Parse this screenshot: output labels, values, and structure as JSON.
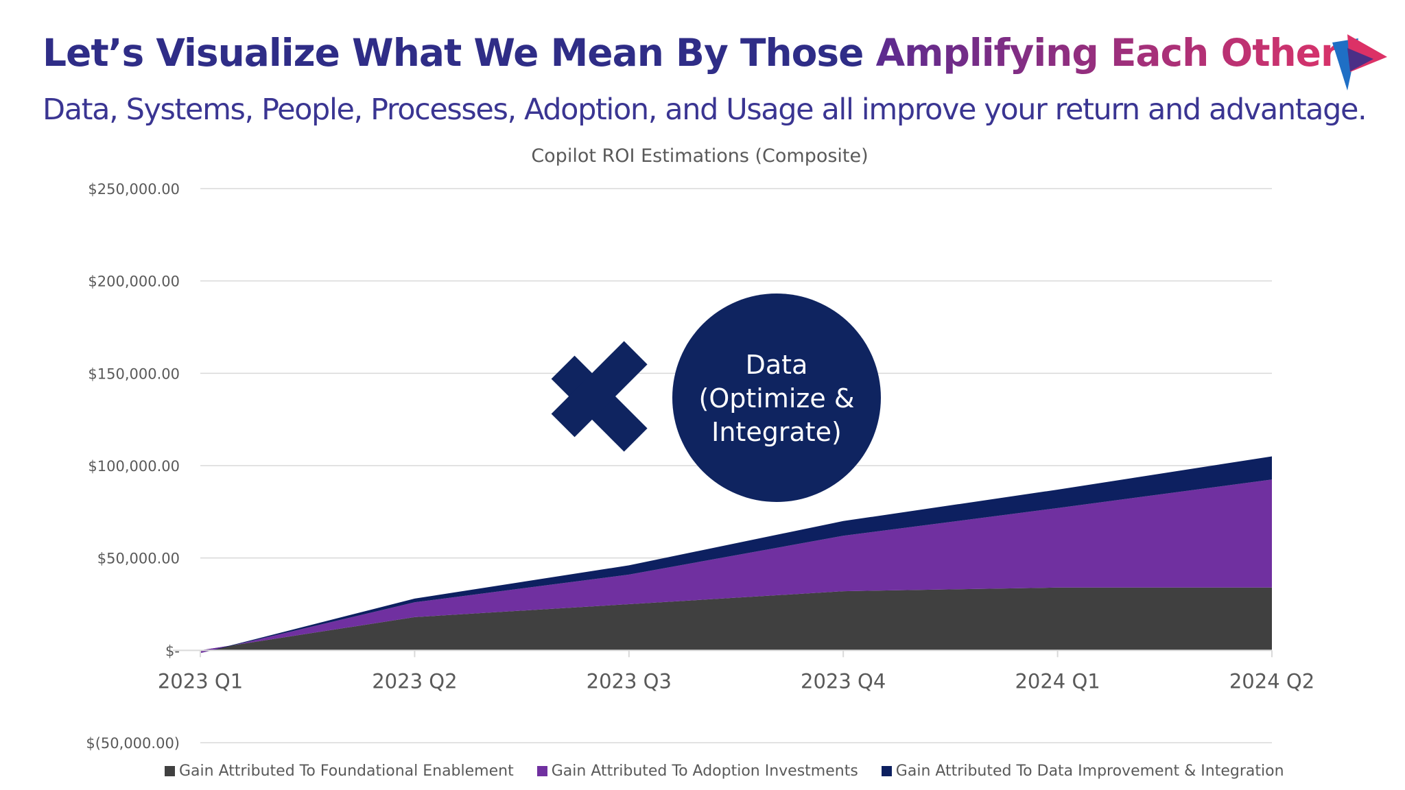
{
  "slide": {
    "title_part1": "Let’s Visualize What We Mean By Those ",
    "title_part2": "Amplifying Each Other",
    "subtitle": "Data, Systems, People, Processes, Adoption, and Usage all improve your return and advantage.",
    "title_color": "#2f2d87",
    "title_gradient_start": "#5b2b8f",
    "title_gradient_end": "#d8336a",
    "subtitle_color": "#3a3592"
  },
  "logo": {
    "icon": "play-triangle-logo-icon",
    "colors": [
      "#1f6fc5",
      "#dc3166",
      "#4b2f86"
    ]
  },
  "overlay": {
    "multiply_icon": "multiply-icon",
    "multiply_color": "#0f2460",
    "circle_color": "#0f2460",
    "circle_text_color": "#ffffff",
    "circle_lines": [
      "Data",
      "(Optimize &",
      "Integrate)"
    ]
  },
  "chart_data": {
    "type": "area",
    "stacked": true,
    "title": "Copilot ROI Estimations (Composite)",
    "categories": [
      "2023 Q1",
      "2023 Q2",
      "2023 Q3",
      "2023 Q4",
      "2024 Q1",
      "2024 Q2"
    ],
    "y_ticks": [
      {
        "value": 250000,
        "label": "$250,000.00"
      },
      {
        "value": 200000,
        "label": "$200,000.00"
      },
      {
        "value": 150000,
        "label": "$150,000.00"
      },
      {
        "value": 100000,
        "label": "$100,000.00"
      },
      {
        "value": 50000,
        "label": "$50,000.00"
      },
      {
        "value": 0,
        "label": "$-"
      },
      {
        "value": -50000,
        "label": "$(50,000.00)"
      }
    ],
    "ylim": [
      -50000,
      250000
    ],
    "grid": true,
    "legend_position": "bottom",
    "series": [
      {
        "name": "Gain Attributed To Foundational Enablement",
        "color": "#404040",
        "values": [
          0,
          18000,
          25000,
          32000,
          34000,
          34000
        ]
      },
      {
        "name": "Gain Attributed To Adoption Investments",
        "color": "#7030a0",
        "values": [
          -1500,
          8000,
          16000,
          30000,
          43000,
          58500
        ]
      },
      {
        "name": "Gain Attributed To Data Improvement & Integration",
        "color": "#0d2060",
        "values": [
          0,
          2000,
          5000,
          8000,
          10000,
          12500
        ]
      }
    ]
  }
}
